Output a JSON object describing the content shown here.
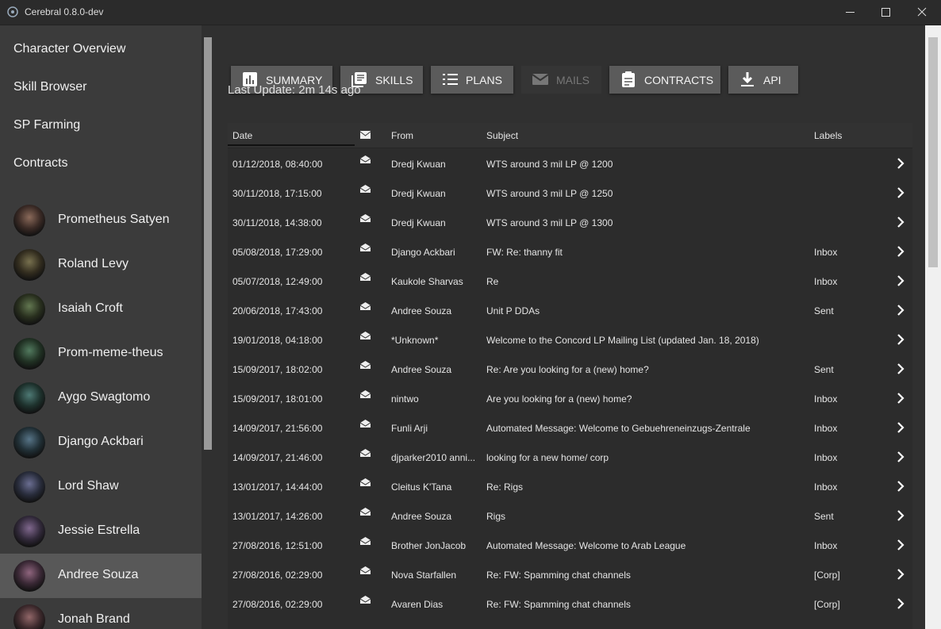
{
  "window": {
    "title": "Cerebral 0.8.0-dev"
  },
  "sidebar": {
    "nav": [
      "Character Overview",
      "Skill Browser",
      "SP Farming",
      "Contracts"
    ],
    "characters": [
      "Prometheus Satyen",
      "Roland Levy",
      "Isaiah Croft",
      "Prom-meme-theus",
      "Aygo Swagtomo",
      "Django Ackbari",
      "Lord Shaw",
      "Jessie Estrella",
      "Andree Souza",
      "Jonah Brand"
    ],
    "selected": 8
  },
  "toolbar": {
    "buttons": [
      "SUMMARY",
      "SKILLS",
      "PLANS",
      "MAILS",
      "CONTRACTS",
      "API"
    ],
    "disabled": 3
  },
  "last_update": "Last Update: 2m 14s ago",
  "table": {
    "headers": {
      "date": "Date",
      "from": "From",
      "subject": "Subject",
      "labels": "Labels"
    },
    "rows": [
      {
        "date": "01/12/2018, 08:40:00",
        "from": "Dredj Kwuan",
        "subject": "WTS around 3 mil LP @ 1200"
      },
      {
        "date": "30/11/2018, 17:15:00",
        "from": "Dredj Kwuan",
        "subject": "WTS around 3 mil LP @ 1250"
      },
      {
        "date": "30/11/2018, 14:38:00",
        "from": "Dredj Kwuan",
        "subject": "WTS around 3 mil LP @ 1300"
      },
      {
        "date": "05/08/2018, 17:29:00",
        "from": "Django Ackbari",
        "subject": "FW: Re: thanny fit",
        "labels": "Inbox"
      },
      {
        "date": "05/07/2018, 12:49:00",
        "from": "Kaukole Sharvas",
        "subject": "Re",
        "labels": "Inbox"
      },
      {
        "date": "20/06/2018, 17:43:00",
        "from": "Andree Souza",
        "subject": "Unit P DDAs",
        "labels": "Sent"
      },
      {
        "date": "19/01/2018, 04:18:00",
        "from": "*Unknown*",
        "subject": "Welcome to the Concord LP Mailing List (updated Jan. 18, 2018)"
      },
      {
        "date": "15/09/2017, 18:02:00",
        "from": "Andree Souza",
        "subject": "Re: Are you looking for a (new) home?",
        "labels": "Sent"
      },
      {
        "date": "15/09/2017, 18:01:00",
        "from": "nintwo",
        "subject": "Are you looking for a (new) home?",
        "labels": "Inbox"
      },
      {
        "date": "14/09/2017, 21:56:00",
        "from": "Funli Arji",
        "subject": "Automated Message: Welcome to Gebuehreneinzugs-Zentrale",
        "labels": "Inbox"
      },
      {
        "date": "14/09/2017, 21:46:00",
        "from": "djparker2010 anni...",
        "subject": "looking for a new home/ corp",
        "labels": "Inbox"
      },
      {
        "date": "13/01/2017, 14:44:00",
        "from": "Cleitus K'Tana",
        "subject": "Re: Rigs",
        "labels": "Inbox"
      },
      {
        "date": "13/01/2017, 14:26:00",
        "from": "Andree Souza",
        "subject": "Rigs",
        "labels": "Sent"
      },
      {
        "date": "27/08/2016, 12:51:00",
        "from": "Brother JonJacob",
        "subject": "Automated Message: Welcome to Arab League",
        "labels": "Inbox"
      },
      {
        "date": "27/08/2016, 02:29:00",
        "from": "Nova Starfallen",
        "subject": "Re: FW: Spamming chat channels",
        "labels": "[Corp]"
      },
      {
        "date": "27/08/2016, 02:29:00",
        "from": "Avaren Dias",
        "subject": "Re: FW: Spamming chat channels",
        "labels": "[Corp]"
      }
    ]
  }
}
